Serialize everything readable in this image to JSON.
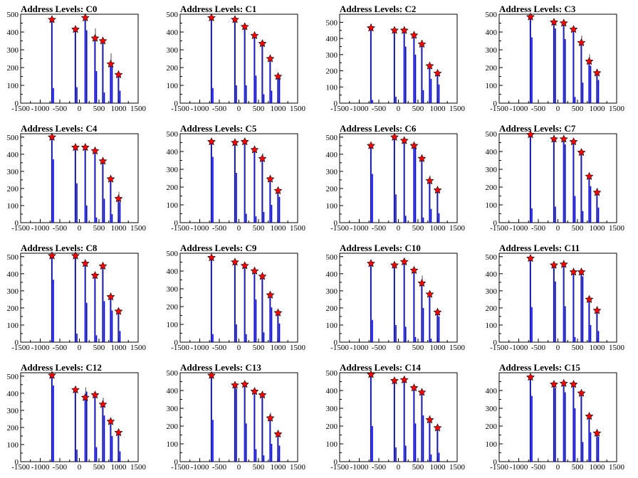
{
  "colors": {
    "bar": "#0000ff",
    "marker": "#ff0000",
    "marker_edge": "#000000",
    "axis": "#000000",
    "background": "#ffffff"
  },
  "axes": {
    "xlim": [
      -1500,
      1500
    ],
    "xticks": [
      -1500,
      -1000,
      -500,
      0,
      500,
      1000,
      1500
    ],
    "xtick_labels": [
      "-1500",
      "-1000",
      "-500",
      "0",
      "500",
      "1000",
      "1500"
    ]
  },
  "chart_data": [
    {
      "type": "bar",
      "title": "Address Levels: C0",
      "ylim": [
        0,
        500
      ],
      "yticks": [
        0,
        100,
        200,
        300,
        400,
        500
      ],
      "ytick_labels": [
        "0",
        "100",
        "200",
        "300",
        "400",
        "500"
      ],
      "x": [
        -700,
        -100,
        150,
        400,
        600,
        800,
        1000
      ],
      "peak_values": [
        470,
        415,
        480,
        365,
        350,
        220,
        160
      ],
      "line_values": [
        470,
        415,
        480,
        420,
        345,
        280,
        160
      ],
      "blue_values": [
        85,
        90,
        410,
        180,
        60,
        205,
        70
      ],
      "marker_values": [
        470,
        415,
        480,
        365,
        350,
        220,
        160
      ]
    },
    {
      "type": "bar",
      "title": "Address Levels: C1",
      "ylim": [
        0,
        500
      ],
      "yticks": [
        0,
        100,
        200,
        300,
        400,
        500
      ],
      "ytick_labels": [
        "0",
        "100",
        "200",
        "300",
        "400",
        "500"
      ],
      "x": [
        -700,
        -100,
        150,
        400,
        600,
        800,
        1000
      ],
      "peak_values": [
        480,
        470,
        430,
        380,
        335,
        250,
        150
      ],
      "line_values": [
        480,
        470,
        445,
        395,
        350,
        265,
        165
      ],
      "blue_values": [
        85,
        100,
        100,
        155,
        50,
        70,
        150
      ],
      "marker_values": [
        480,
        470,
        430,
        380,
        335,
        250,
        150
      ]
    },
    {
      "type": "bar",
      "title": "Address Levels: C2",
      "ylim": [
        0,
        550
      ],
      "yticks": [
        0,
        100,
        200,
        300,
        400,
        500
      ],
      "ytick_labels": [
        "0",
        "100",
        "200",
        "300",
        "400",
        "500"
      ],
      "x": [
        -700,
        -100,
        150,
        400,
        600,
        800,
        1000
      ],
      "peak_values": [
        465,
        450,
        450,
        420,
        365,
        230,
        185
      ],
      "line_values": [
        490,
        470,
        455,
        440,
        390,
        240,
        200
      ],
      "blue_values": [
        20,
        40,
        350,
        300,
        80,
        150,
        115
      ],
      "marker_values": [
        465,
        450,
        450,
        420,
        365,
        230,
        185
      ]
    },
    {
      "type": "bar",
      "title": "Address Levels: C3",
      "ylim": [
        0,
        500
      ],
      "yticks": [
        0,
        100,
        200,
        300,
        400,
        500
      ],
      "ytick_labels": [
        "0",
        "100",
        "200",
        "300",
        "400",
        "500"
      ],
      "x": [
        -700,
        -100,
        150,
        400,
        600,
        800,
        1000
      ],
      "peak_values": [
        485,
        455,
        450,
        415,
        340,
        235,
        170
      ],
      "line_values": [
        485,
        455,
        460,
        420,
        380,
        275,
        190
      ],
      "blue_values": [
        370,
        420,
        360,
        35,
        115,
        210,
        130
      ],
      "marker_values": [
        485,
        455,
        450,
        415,
        340,
        235,
        170
      ]
    },
    {
      "type": "bar",
      "title": "Address Levels: C4",
      "ylim": [
        0,
        520
      ],
      "yticks": [
        0,
        100,
        200,
        300,
        400,
        500
      ],
      "ytick_labels": [
        "0",
        "100",
        "200",
        "300",
        "400",
        "500"
      ],
      "x": [
        -700,
        -100,
        150,
        400,
        600,
        800,
        1000
      ],
      "peak_values": [
        500,
        440,
        440,
        420,
        360,
        255,
        140
      ],
      "line_values": [
        500,
        440,
        440,
        420,
        360,
        255,
        180
      ],
      "blue_values": [
        370,
        230,
        100,
        30,
        140,
        50,
        120
      ],
      "marker_values": [
        500,
        440,
        440,
        420,
        360,
        255,
        140
      ]
    },
    {
      "type": "bar",
      "title": "Address Levels: C5",
      "ylim": [
        0,
        500
      ],
      "yticks": [
        0,
        100,
        200,
        300,
        400,
        500
      ],
      "ytick_labels": [
        "0",
        "100",
        "200",
        "300",
        "400",
        "500"
      ],
      "x": [
        -700,
        -100,
        150,
        400,
        600,
        800,
        1000
      ],
      "peak_values": [
        455,
        450,
        455,
        410,
        360,
        245,
        180
      ],
      "line_values": [
        455,
        450,
        455,
        420,
        390,
        265,
        200
      ],
      "blue_values": [
        370,
        280,
        50,
        35,
        60,
        100,
        145
      ],
      "marker_values": [
        455,
        450,
        455,
        410,
        360,
        245,
        180
      ]
    },
    {
      "type": "bar",
      "title": "Address Levels: C6",
      "ylim": [
        0,
        520
      ],
      "yticks": [
        0,
        100,
        200,
        300,
        400,
        500
      ],
      "ytick_labels": [
        "0",
        "100",
        "200",
        "300",
        "400",
        "500"
      ],
      "x": [
        -700,
        -100,
        150,
        400,
        600,
        800,
        1000
      ],
      "peak_values": [
        450,
        500,
        480,
        450,
        375,
        245,
        190
      ],
      "line_values": [
        450,
        500,
        485,
        455,
        390,
        275,
        205
      ],
      "blue_values": [
        285,
        165,
        40,
        440,
        30,
        80,
        55
      ],
      "marker_values": [
        450,
        500,
        480,
        450,
        375,
        245,
        190
      ]
    },
    {
      "type": "bar",
      "title": "Address Levels: C7",
      "ylim": [
        0,
        500
      ],
      "yticks": [
        0,
        100,
        200,
        300,
        400,
        500
      ],
      "ytick_labels": [
        "0",
        "100",
        "200",
        "300",
        "400",
        "500"
      ],
      "x": [
        -700,
        -100,
        150,
        400,
        600,
        800,
        1000
      ],
      "peak_values": [
        495,
        470,
        470,
        455,
        395,
        260,
        170
      ],
      "line_values": [
        495,
        470,
        470,
        460,
        410,
        265,
        195
      ],
      "blue_values": [
        80,
        90,
        440,
        150,
        65,
        205,
        85
      ],
      "marker_values": [
        495,
        470,
        470,
        455,
        395,
        260,
        170
      ]
    },
    {
      "type": "bar",
      "title": "Address Levels: C8",
      "ylim": [
        0,
        520
      ],
      "yticks": [
        0,
        100,
        200,
        300,
        400,
        500
      ],
      "ytick_labels": [
        "0",
        "100",
        "200",
        "300",
        "400",
        "500"
      ],
      "x": [
        -700,
        -100,
        150,
        400,
        600,
        800,
        1000
      ],
      "peak_values": [
        505,
        505,
        460,
        390,
        445,
        265,
        180
      ],
      "line_values": [
        505,
        505,
        460,
        400,
        450,
        285,
        190
      ],
      "blue_values": [
        365,
        50,
        230,
        40,
        240,
        185,
        65
      ],
      "marker_values": [
        505,
        505,
        460,
        390,
        445,
        265,
        180
      ]
    },
    {
      "type": "bar",
      "title": "Address Levels: C9",
      "ylim": [
        0,
        500
      ],
      "yticks": [
        0,
        100,
        200,
        300,
        400,
        500
      ],
      "ytick_labels": [
        "0",
        "100",
        "200",
        "300",
        "400",
        "500"
      ],
      "x": [
        -700,
        -100,
        150,
        400,
        600,
        800,
        1000
      ],
      "peak_values": [
        475,
        450,
        430,
        400,
        370,
        265,
        165
      ],
      "line_values": [
        475,
        450,
        445,
        420,
        385,
        275,
        180
      ],
      "blue_values": [
        45,
        100,
        45,
        240,
        55,
        195,
        105
      ],
      "marker_values": [
        475,
        450,
        430,
        400,
        370,
        265,
        165
      ]
    },
    {
      "type": "bar",
      "title": "Address Levels: C10",
      "ylim": [
        0,
        520
      ],
      "yticks": [
        0,
        100,
        200,
        300,
        400,
        500
      ],
      "ytick_labels": [
        "0",
        "100",
        "200",
        "300",
        "400",
        "500"
      ],
      "x": [
        -700,
        -100,
        150,
        400,
        600,
        800,
        1000
      ],
      "peak_values": [
        460,
        450,
        470,
        420,
        345,
        280,
        175
      ],
      "line_values": [
        460,
        450,
        470,
        435,
        390,
        300,
        190
      ],
      "blue_values": [
        130,
        100,
        90,
        30,
        200,
        20,
        150
      ],
      "marker_values": [
        460,
        450,
        470,
        420,
        345,
        280,
        175
      ]
    },
    {
      "type": "bar",
      "title": "Address Levels: C11",
      "ylim": [
        0,
        520
      ],
      "yticks": [
        0,
        100,
        200,
        300,
        400,
        500
      ],
      "ytick_labels": [
        "0",
        "100",
        "200",
        "300",
        "400",
        "500"
      ],
      "x": [
        -700,
        -100,
        150,
        400,
        600,
        800,
        1000
      ],
      "peak_values": [
        490,
        450,
        455,
        410,
        410,
        250,
        185
      ],
      "line_values": [
        490,
        460,
        460,
        415,
        410,
        270,
        210
      ],
      "blue_values": [
        205,
        355,
        210,
        30,
        385,
        100,
        65
      ],
      "marker_values": [
        490,
        450,
        455,
        410,
        410,
        250,
        185
      ]
    },
    {
      "type": "bar",
      "title": "Address Levels: C12",
      "ylim": [
        0,
        520
      ],
      "yticks": [
        0,
        100,
        200,
        300,
        400,
        500
      ],
      "ytick_labels": [
        "0",
        "100",
        "200",
        "300",
        "400",
        "500"
      ],
      "x": [
        -700,
        -100,
        150,
        400,
        600,
        800,
        1000
      ],
      "peak_values": [
        505,
        420,
        375,
        390,
        335,
        235,
        170
      ],
      "line_values": [
        505,
        420,
        435,
        405,
        375,
        250,
        190
      ],
      "blue_values": [
        445,
        70,
        410,
        85,
        270,
        150,
        60
      ],
      "marker_values": [
        505,
        420,
        375,
        390,
        335,
        235,
        170
      ]
    },
    {
      "type": "bar",
      "title": "Address Levels: C13",
      "ylim": [
        0,
        500
      ],
      "yticks": [
        0,
        100,
        200,
        300,
        400,
        500
      ],
      "ytick_labels": [
        "0",
        "100",
        "200",
        "300",
        "400",
        "500"
      ],
      "x": [
        -700,
        -100,
        150,
        400,
        600,
        800,
        1000
      ],
      "peak_values": [
        485,
        430,
        435,
        395,
        375,
        245,
        155
      ],
      "line_values": [
        485,
        445,
        435,
        405,
        380,
        275,
        175
      ],
      "blue_values": [
        235,
        410,
        215,
        70,
        35,
        100,
        90
      ],
      "marker_values": [
        485,
        430,
        435,
        395,
        375,
        245,
        155
      ]
    },
    {
      "type": "bar",
      "title": "Address Levels: C14",
      "ylim": [
        0,
        500
      ],
      "yticks": [
        0,
        100,
        200,
        300,
        400,
        500
      ],
      "ytick_labels": [
        "0",
        "100",
        "200",
        "300",
        "400",
        "500"
      ],
      "x": [
        -700,
        -100,
        150,
        400,
        600,
        800,
        1000
      ],
      "peak_values": [
        490,
        455,
        460,
        415,
        390,
        235,
        190
      ],
      "line_values": [
        490,
        455,
        460,
        415,
        390,
        260,
        205
      ],
      "blue_values": [
        200,
        80,
        90,
        215,
        260,
        40,
        50
      ],
      "marker_values": [
        490,
        455,
        460,
        415,
        390,
        235,
        190
      ]
    },
    {
      "type": "bar",
      "title": "Address Levels: C15",
      "ylim": [
        0,
        500
      ],
      "yticks": [
        0,
        100,
        200,
        300,
        400
      ],
      "ytick_labels": [
        "0",
        "100",
        "200",
        "300",
        "400"
      ],
      "x": [
        -700,
        -100,
        150,
        400,
        600,
        800,
        1000
      ],
      "peak_values": [
        475,
        435,
        440,
        435,
        385,
        255,
        160
      ],
      "line_values": [
        475,
        440,
        450,
        435,
        395,
        265,
        170
      ],
      "blue_values": [
        370,
        415,
        390,
        300,
        110,
        165,
        140
      ],
      "marker_values": [
        475,
        435,
        440,
        435,
        385,
        255,
        160
      ]
    }
  ]
}
